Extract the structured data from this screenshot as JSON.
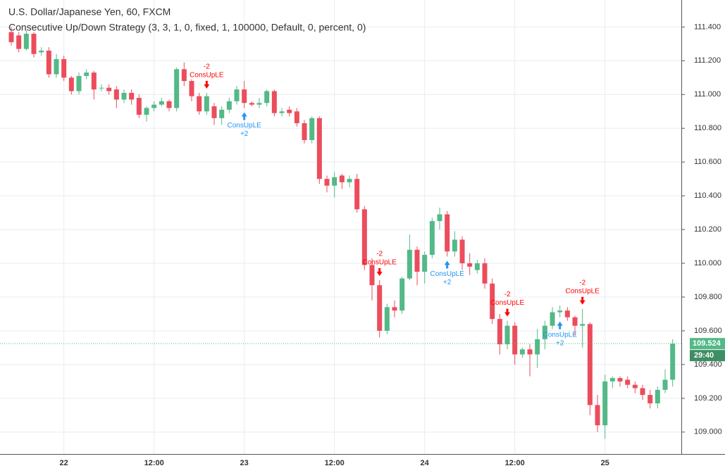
{
  "chart_data": {
    "type": "candlestick",
    "title": "U.S. Dollar/Japanese Yen, 60, FXCM",
    "subtitle": "Consecutive Up/Down Strategy (3, 3, 1, 0, fixed, 1, 100000, Default, 0, percent, 0)",
    "categories": [
      null,
      null,
      null,
      null,
      null,
      null,
      null,
      "22",
      null,
      null,
      null,
      null,
      null,
      null,
      null,
      null,
      null,
      null,
      null,
      "12:00",
      null,
      null,
      null,
      null,
      null,
      null,
      null,
      null,
      null,
      null,
      null,
      "23",
      null,
      null,
      null,
      null,
      null,
      null,
      null,
      null,
      null,
      null,
      null,
      "12:00",
      null,
      null,
      null,
      null,
      null,
      null,
      null,
      null,
      null,
      null,
      null,
      "24",
      null,
      null,
      null,
      null,
      null,
      null,
      null,
      null,
      null,
      null,
      null,
      "12:00",
      null,
      null,
      null,
      null,
      null,
      null,
      null,
      null,
      null,
      null,
      null,
      "25",
      null,
      null,
      null,
      null,
      null,
      null,
      null,
      null,
      null
    ],
    "open": [
      111.37,
      111.35,
      111.27,
      111.36,
      111.25,
      111.26,
      111.12,
      111.21,
      111.1,
      111.02,
      111.11,
      111.13,
      111.04,
      111.04,
      111.03,
      110.97,
      111.01,
      110.98,
      110.88,
      110.92,
      110.94,
      110.96,
      110.92,
      111.15,
      111.08,
      110.99,
      110.9,
      110.93,
      110.86,
      110.91,
      110.96,
      111.03,
      110.95,
      110.94,
      110.95,
      111.02,
      110.89,
      110.91,
      110.9,
      110.83,
      110.73,
      110.86,
      110.5,
      110.46,
      110.52,
      110.48,
      110.5,
      110.32,
      109.99,
      109.87,
      109.6,
      109.74,
      109.72,
      109.91,
      110.08,
      109.95,
      110.05,
      110.25,
      110.29,
      110.07,
      110.14,
      110.0,
      109.96,
      110.0,
      109.88,
      109.67,
      109.52,
      109.63,
      109.46,
      109.49,
      109.46,
      109.55,
      109.63,
      109.71,
      109.72,
      109.68,
      109.63,
      109.64,
      109.16,
      109.04,
      109.3,
      109.32,
      109.31,
      109.28,
      109.26,
      109.22,
      109.17,
      109.25,
      109.31
    ],
    "high": [
      111.4,
      111.37,
      111.38,
      111.37,
      111.28,
      111.28,
      111.24,
      111.23,
      111.11,
      111.13,
      111.15,
      111.14,
      111.06,
      111.06,
      111.05,
      111.03,
      111.03,
      111.0,
      110.93,
      110.96,
      110.98,
      110.97,
      111.16,
      111.19,
      111.09,
      111.01,
      111.01,
      110.95,
      110.93,
      110.98,
      111.05,
      111.08,
      110.96,
      110.98,
      111.03,
      111.03,
      110.92,
      110.93,
      110.92,
      110.85,
      110.87,
      110.87,
      110.52,
      110.54,
      110.53,
      110.52,
      110.53,
      110.34,
      110.03,
      109.9,
      109.76,
      109.78,
      109.92,
      110.17,
      110.1,
      110.07,
      110.27,
      110.33,
      110.31,
      110.19,
      110.16,
      110.06,
      110.02,
      110.03,
      109.91,
      109.7,
      109.66,
      109.65,
      109.5,
      109.52,
      109.61,
      109.66,
      109.74,
      109.75,
      109.74,
      109.69,
      109.73,
      109.65,
      109.22,
      109.34,
      109.33,
      109.33,
      109.33,
      109.3,
      109.28,
      109.25,
      109.27,
      109.37,
      109.55
    ],
    "low": [
      111.29,
      111.25,
      111.26,
      111.22,
      111.23,
      111.1,
      111.1,
      111.08,
      111.0,
      111.0,
      111.09,
      110.97,
      111.02,
      111.0,
      110.92,
      110.95,
      110.94,
      110.86,
      110.84,
      110.9,
      110.93,
      110.9,
      110.9,
      111.05,
      110.96,
      110.88,
      110.88,
      110.82,
      110.82,
      110.89,
      110.94,
      110.92,
      110.93,
      110.92,
      110.93,
      110.87,
      110.87,
      110.87,
      110.81,
      110.71,
      110.71,
      110.47,
      110.42,
      110.39,
      110.44,
      110.45,
      110.3,
      109.96,
      109.78,
      109.56,
      109.58,
      109.68,
      109.7,
      109.9,
      109.87,
      109.88,
      110.03,
      110.2,
      110.04,
      110.04,
      109.96,
      109.93,
      109.94,
      109.85,
      109.64,
      109.46,
      109.49,
      109.4,
      109.44,
      109.33,
      109.38,
      109.49,
      109.61,
      109.68,
      109.66,
      109.57,
      109.5,
      109.1,
      109.0,
      108.96,
      109.26,
      109.27,
      109.26,
      109.23,
      109.19,
      109.14,
      109.14,
      109.23,
      109.27
    ],
    "close": [
      111.31,
      111.27,
      111.36,
      111.24,
      111.26,
      111.12,
      111.21,
      111.1,
      111.02,
      111.11,
      111.13,
      111.03,
      111.04,
      111.02,
      110.97,
      111.01,
      110.97,
      110.88,
      110.92,
      110.94,
      110.96,
      110.92,
      111.15,
      111.08,
      110.99,
      110.9,
      110.99,
      110.86,
      110.91,
      110.96,
      111.03,
      110.95,
      110.94,
      110.95,
      111.02,
      110.89,
      110.9,
      110.89,
      110.83,
      110.73,
      110.86,
      110.5,
      110.46,
      110.51,
      110.48,
      110.5,
      110.32,
      109.99,
      109.87,
      109.6,
      109.74,
      109.72,
      109.91,
      110.08,
      109.95,
      110.05,
      110.25,
      110.29,
      110.07,
      110.14,
      110.0,
      109.98,
      110.0,
      109.88,
      109.67,
      109.52,
      109.63,
      109.46,
      109.49,
      109.46,
      109.55,
      109.63,
      109.71,
      109.72,
      109.68,
      109.63,
      109.64,
      109.16,
      109.04,
      109.3,
      109.32,
      109.3,
      109.28,
      109.26,
      109.22,
      109.17,
      109.25,
      109.31,
      109.524
    ],
    "up_color": "#53b987",
    "down_color": "#eb4d5c",
    "ylim": [
      108.87,
      111.56
    ],
    "yticks": [
      {
        "value": 109.0,
        "label": "109.000"
      },
      {
        "value": 109.2,
        "label": "109.200"
      },
      {
        "value": 109.4,
        "label": "109.400"
      },
      {
        "value": 109.6,
        "label": "109.600"
      },
      {
        "value": 109.8,
        "label": "109.800"
      },
      {
        "value": 110.0,
        "label": "110.000"
      },
      {
        "value": 110.2,
        "label": "110.200"
      },
      {
        "value": 110.4,
        "label": "110.400"
      },
      {
        "value": 110.6,
        "label": "110.600"
      },
      {
        "value": 110.8,
        "label": "110.800"
      },
      {
        "value": 111.0,
        "label": "111.000"
      },
      {
        "value": 111.2,
        "label": "111.200"
      },
      {
        "value": 111.4,
        "label": "111.400"
      }
    ],
    "grid": true,
    "last_price": 109.524,
    "countdown": "29:40",
    "signals": [
      {
        "side": "sell",
        "index": 26,
        "label": "ConsUpLE",
        "qty": "-2",
        "color": "#ff0000"
      },
      {
        "side": "buy",
        "index": 31,
        "label": "ConsUpLE",
        "qty": "+2",
        "color": "#2196f3"
      },
      {
        "side": "sell",
        "index": 49,
        "label": "ConsUpLE",
        "qty": "-2",
        "color": "#ff0000"
      },
      {
        "side": "buy",
        "index": 58,
        "label": "ConsUpLE",
        "qty": "+2",
        "color": "#2196f3"
      },
      {
        "side": "sell",
        "index": 66,
        "label": "ConsUpLE",
        "qty": "-2",
        "color": "#ff0000"
      },
      {
        "side": "buy",
        "index": 73,
        "label": "ConsUpLE",
        "qty": "+2",
        "color": "#2196f3"
      },
      {
        "side": "sell",
        "index": 76,
        "label": "ConsUpLE",
        "qty": "-2",
        "color": "#ff0000"
      }
    ]
  }
}
